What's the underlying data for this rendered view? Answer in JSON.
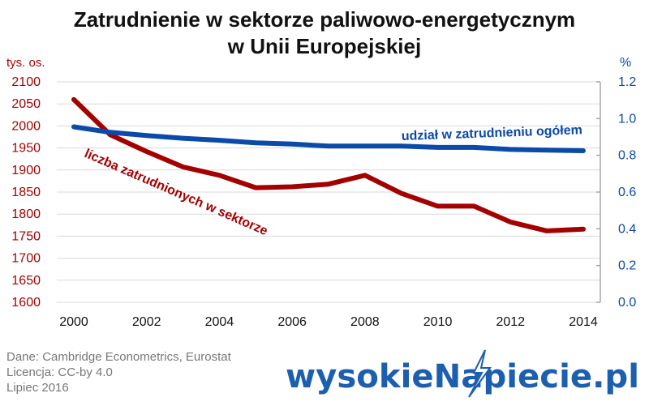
{
  "chart_data": {
    "type": "line",
    "title_lines": [
      "Zatrudnienie w sektorze paliwowo-energetycznym",
      "w Unii Europejskiej"
    ],
    "left_axis_unit": "tys. os.",
    "right_axis_unit": "%",
    "x": [
      2000,
      2001,
      2002,
      2003,
      2004,
      2005,
      2006,
      2007,
      2008,
      2009,
      2010,
      2011,
      2012,
      2013,
      2014
    ],
    "x_tick_labels": [
      "2000",
      "2002",
      "2004",
      "2006",
      "2008",
      "2010",
      "2012",
      "2014"
    ],
    "x_tick_values": [
      2000,
      2002,
      2004,
      2006,
      2008,
      2010,
      2012,
      2014
    ],
    "xlim": [
      2000,
      2014
    ],
    "y_left_lim": [
      1600,
      2100
    ],
    "y_left_ticks": [
      "1600",
      "1650",
      "1700",
      "1750",
      "1800",
      "1850",
      "1900",
      "1950",
      "2000",
      "2050",
      "2100"
    ],
    "y_right_lim": [
      0.0,
      1.2
    ],
    "y_right_ticks": [
      "0.0",
      "0.2",
      "0.4",
      "0.6",
      "0.8",
      "1.0",
      "1.2"
    ],
    "grid": true,
    "series": [
      {
        "name": "liczba zatrudnionych w sektorze",
        "axis": "left",
        "color": "#a50000",
        "values": [
          2060,
          1980,
          1942,
          1907,
          1888,
          1860,
          1862,
          1868,
          1888,
          1847,
          1818,
          1818,
          1782,
          1762,
          1766
        ]
      },
      {
        "name": "udział w zatrudnieniu ogółem",
        "axis": "right",
        "color": "#0a4aa8",
        "values": [
          0.955,
          0.925,
          0.908,
          0.893,
          0.882,
          0.868,
          0.861,
          0.85,
          0.85,
          0.85,
          0.843,
          0.843,
          0.832,
          0.828,
          0.825
        ]
      }
    ]
  },
  "colors": {
    "left_axis": "#a50000",
    "right_axis": "#0a4aa8",
    "grid": "#d9d9d9",
    "axis_line": "#a6a6a6",
    "footer_text": "#777777",
    "brand": "#1c5fae"
  },
  "footer": {
    "source": "Dane: Cambridge Econometrics, Eurostat",
    "license": "Licencja: CC-by 4.0",
    "date": "Lipiec 2016"
  },
  "brand": {
    "logo_text": "wysokieNapiecie.pl",
    "icon": "lightning-bolt-icon"
  }
}
